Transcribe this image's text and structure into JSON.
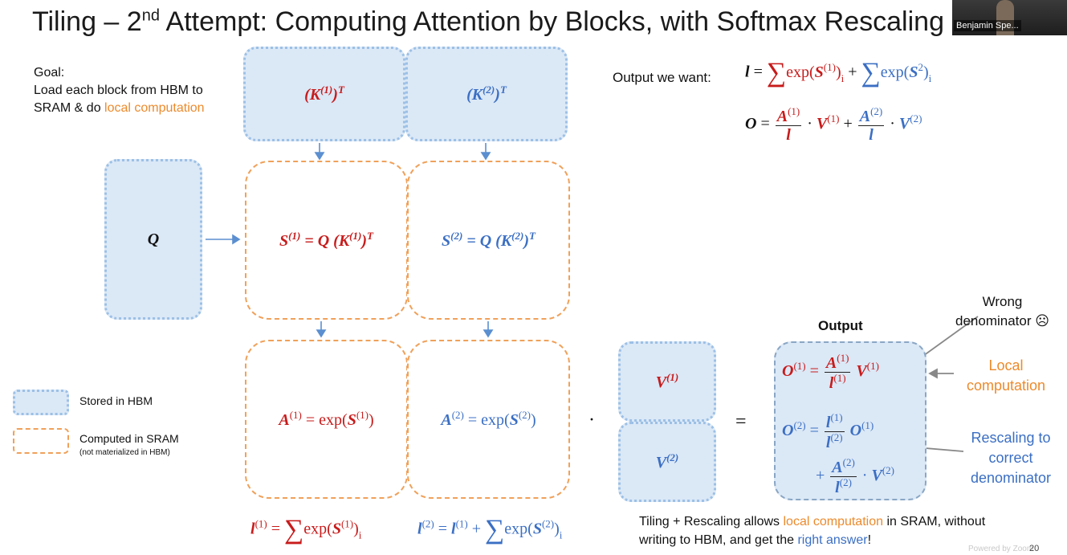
{
  "title": {
    "prefix": "Tiling – 2",
    "ordinal": "nd",
    "rest": " Attempt: Computing Attention by Blocks, with Softmax Rescaling"
  },
  "speaker_name": "Benjamin Spe...",
  "goal": {
    "line1": "Goal:",
    "line2": "Load each block from HBM to",
    "line3_prefix": "SRAM & do ",
    "line3_highlight": "local computation"
  },
  "blocks": {
    "k1": "(K(1))T",
    "k2": "(K(2))T",
    "q": "Q",
    "s1_lhs": "S(1) = Q",
    "s1_rhs": "(K(1))T",
    "s2_lhs": "S(2) = Q",
    "s2_rhs": "(K(2))T",
    "a1": "A(1) = exp(S(1))",
    "a2": "A(2) = exp(S(2))",
    "v1": "V(1)",
    "v2": "V(2)",
    "dot": "·",
    "equals": "="
  },
  "output_want": {
    "label": "Output we want:",
    "l_eq": "l =",
    "l_term1": "exp(S(1))i",
    "plus": "+",
    "l_term2": "exp(S2)i",
    "o_eq": "O =",
    "o_frac1_num": "A(1)",
    "o_frac1_den": "l",
    "o_term1": "· V(1) +",
    "o_frac2_num": "A(2)",
    "o_frac2_den": "l",
    "o_term2": "· V(2)"
  },
  "output_box": {
    "heading": "Output",
    "o1_lhs": "O(1) =",
    "o1_num": "A(1)",
    "o1_den": "l(1)",
    "o1_rhs": "V(1)",
    "o2_lhs": "O(2) =",
    "o2_num": "l(1)",
    "o2_den": "l(2)",
    "o2_rhs": "O(1)",
    "o2_plus": "+",
    "o2b_num": "A(2)",
    "o2b_den": "l(2)",
    "o2b_rhs": "· V(2)"
  },
  "annotations": {
    "wrong_line1": "Wrong",
    "wrong_line2": "denominator ☹",
    "local_line1": "Local",
    "local_line2": "computation",
    "rescale_line1": "Rescaling to",
    "rescale_line2": "correct",
    "rescale_line3": "denominator"
  },
  "legend": {
    "hbm": "Stored in HBM",
    "sram": "Computed in SRAM",
    "sram_note": "(not materialized in HBM)"
  },
  "bottom_formulas": {
    "l1_lhs": "l(1) =",
    "l1_rhs": "exp(S(1))i",
    "l2_lhs": "l(2) = l(1) +",
    "l2_rhs": "exp(S(2))i"
  },
  "conclusion": {
    "p1": "Tiling + Rescaling allows ",
    "p2": "local computation",
    "p3": " in SRAM, without",
    "p4": "writing to HBM, and get the ",
    "p5": "right answer",
    "p6": "!"
  },
  "watermark": "Powered by Zoom",
  "page_number": "20",
  "colors": {
    "hbm_fill": "#dbe8f6",
    "hbm_border": "#9cc0e6",
    "sram_border": "#f0a15a",
    "red": "#c81b1b",
    "blue": "#3b6fc4",
    "orange": "#ec8a2c"
  }
}
